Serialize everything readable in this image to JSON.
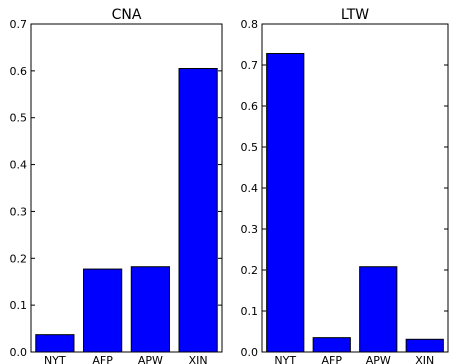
{
  "chart_data": [
    {
      "type": "bar",
      "title": "CNA",
      "categories": [
        "NYT",
        "AFP",
        "APW",
        "XIN"
      ],
      "values": [
        0.037,
        0.177,
        0.182,
        0.605
      ],
      "ylim": [
        0,
        0.7
      ],
      "yticks": [
        "0.0",
        "0.1",
        "0.2",
        "0.3",
        "0.4",
        "0.5",
        "0.6",
        "0.7"
      ],
      "xlabel": "",
      "ylabel": "",
      "bar_color": "#0000ff",
      "grid": false,
      "legend": "none"
    },
    {
      "type": "bar",
      "title": "LTW",
      "categories": [
        "NYT",
        "AFP",
        "APW",
        "XIN"
      ],
      "values": [
        0.728,
        0.035,
        0.208,
        0.031
      ],
      "ylim": [
        0,
        0.8
      ],
      "yticks": [
        "0.0",
        "0.1",
        "0.2",
        "0.3",
        "0.4",
        "0.5",
        "0.6",
        "0.7",
        "0.8"
      ],
      "xlabel": "",
      "ylabel": "",
      "bar_color": "#0000ff",
      "grid": false,
      "legend": "none"
    }
  ]
}
